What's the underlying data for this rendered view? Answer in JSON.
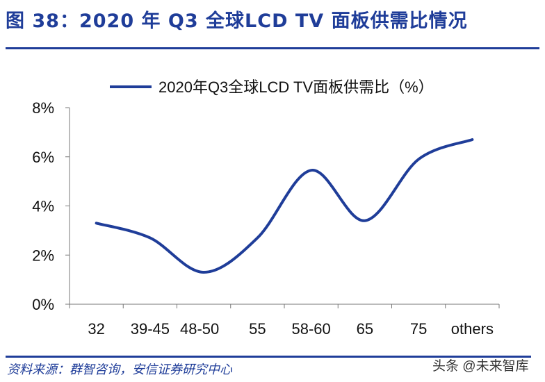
{
  "header": {
    "title": "图 38：2020 年 Q3 全球LCD TV 面板供需比情况"
  },
  "footer": {
    "source": "资料来源：群智咨询，安信证券研究中心",
    "watermark": "头条 @未来智库"
  },
  "chart_data": {
    "type": "line",
    "title": "",
    "categories": [
      "32",
      "39-45",
      "48-50",
      "55",
      "58-60",
      "65",
      "75",
      "others"
    ],
    "series": [
      {
        "name": "2020年Q3全球LCD TV面板供需比（%）",
        "values": [
          3.3,
          2.7,
          1.3,
          2.7,
          5.45,
          3.4,
          5.9,
          6.7
        ],
        "color": "#1f3d99"
      }
    ],
    "yticks": [
      "0%",
      "2%",
      "4%",
      "6%",
      "8%"
    ],
    "ylim": [
      0,
      8
    ],
    "grid": false,
    "legend": "top",
    "smooth": true
  }
}
